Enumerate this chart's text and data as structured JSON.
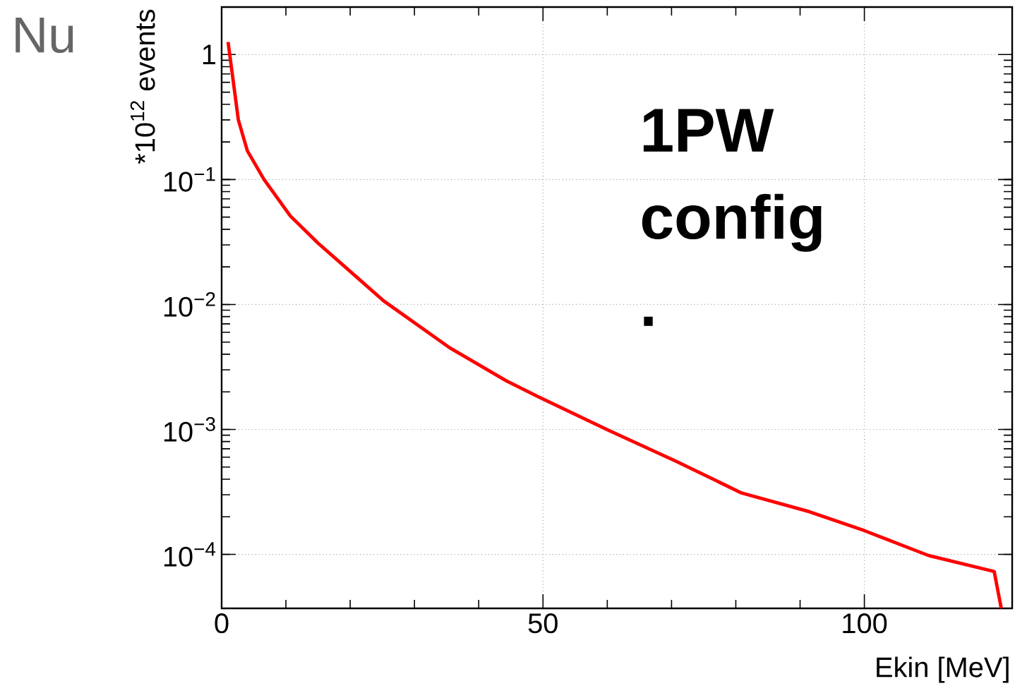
{
  "chart_data": {
    "type": "line",
    "xlabel": "Ekin [MeV]",
    "ylabel": "*10$^{12}$ events",
    "annotations": [
      "1PW config .",
      "Nu"
    ],
    "x": [
      1,
      2.6,
      4,
      6.6,
      10.7,
      15,
      25.2,
      35.5,
      44.3,
      50,
      60.3,
      70.6,
      80.9,
      91.4,
      100,
      110,
      120.2,
      121.3
    ],
    "series": [
      {
        "color": "#ff0000",
        "values": [
          1.26,
          0.3,
          0.17,
          0.1,
          0.051,
          0.031,
          0.0107,
          0.0045,
          0.00245,
          0.00175,
          0.00098,
          0.00056,
          0.00031,
          0.00022,
          0.000155,
          9.8e-05,
          7.3e-05,
          3.7e-05
        ]
      }
    ],
    "xlim": [
      0,
      123
    ],
    "ylim": [
      3.7e-05,
      2.4
    ],
    "log": "y",
    "grid": true,
    "marker": "none",
    "line_style": "solid",
    "xticks": [
      0,
      50,
      100
    ],
    "yticks": [
      {
        "value": 0.0001,
        "label": "10$^{−4}$"
      },
      {
        "value": 0.001,
        "label": "10$^{−3}$"
      },
      {
        "value": 0.01,
        "label": "10$^{−2}$"
      },
      {
        "value": 0.1,
        "label": "10$^{−1}$"
      },
      {
        "value": 1,
        "label": "1"
      }
    ]
  }
}
